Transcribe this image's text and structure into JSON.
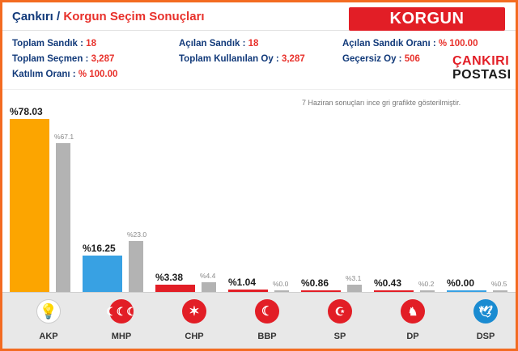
{
  "header": {
    "city": "Çankırı",
    "separator": "/",
    "title": "Korgun Seçim Sonuçları",
    "badge": "KORGUN"
  },
  "stats": {
    "toplam_sandik_label": "Toplam Sandık :",
    "toplam_sandik_value": "18",
    "acilan_sandik_label": "Açılan Sandık :",
    "acilan_sandik_value": "18",
    "acilan_sandik_orani_label": "Açılan Sandık Oranı :",
    "acilan_sandik_orani_value": "% 100.00",
    "toplam_secmen_label": "Toplam Seçmen :",
    "toplam_secmen_value": "3,287",
    "toplam_kullanilan_oy_label": "Toplam Kullanılan Oy :",
    "toplam_kullanilan_oy_value": "3,287",
    "gecersiz_oy_label": "Geçersiz Oy :",
    "gecersiz_oy_value": "506",
    "katilim_orani_label": "Katılım Oranı :",
    "katilim_orani_value": "% 100.00"
  },
  "logo": {
    "line1": "ÇANKIRI",
    "line2": "POSTASI"
  },
  "note": "7 Haziran sonuçları ince gri grafikte gösterilmiştir.",
  "colors": {
    "frame": "#f36b21",
    "badge": "#e21e26",
    "akp": "#fca500",
    "mhp": "#38a1e3",
    "chp": "#e21e26",
    "bbp": "#e21e26",
    "sp": "#e21e26",
    "dp": "#e21e26",
    "dsp": "#38a1e3",
    "gray": "#b3b3b3"
  },
  "chart_data": {
    "type": "bar",
    "categories": [
      "AKP",
      "MHP",
      "CHP",
      "BBP",
      "SP",
      "DP",
      "DSP"
    ],
    "series": [
      {
        "values": [
          78.03,
          16.25,
          3.38,
          1.04,
          0.86,
          0.43,
          0.0
        ]
      },
      {
        "values": [
          67.1,
          23.0,
          4.4,
          0.0,
          3.1,
          0.2,
          0.5
        ]
      }
    ],
    "labels_main": [
      "%78.03",
      "%16.25",
      "%3.38",
      "%1.04",
      "%0.86",
      "%0.43",
      "%0.00"
    ],
    "labels_prev": [
      "%67.1",
      "%23.0",
      "%4.4",
      "%0.0",
      "%3.1",
      "%0.2",
      "%0.5"
    ],
    "ylim": [
      0,
      78.03
    ]
  },
  "parties": [
    {
      "name": "AKP",
      "icon": "akp-bulb-icon",
      "color": "#fff"
    },
    {
      "name": "MHP",
      "icon": "mhp-crescents-icon",
      "color": "#e21e26"
    },
    {
      "name": "CHP",
      "icon": "chp-arrows-icon",
      "color": "#e21e26"
    },
    {
      "name": "BBP",
      "icon": "bbp-crescent-icon",
      "color": "#e21e26"
    },
    {
      "name": "SP",
      "icon": "sp-crescent-star-icon",
      "color": "#e21e26"
    },
    {
      "name": "DP",
      "icon": "dp-horse-icon",
      "color": "#e21e26"
    },
    {
      "name": "DSP",
      "icon": "dsp-dove-icon",
      "color": "#1a8bd1"
    }
  ]
}
